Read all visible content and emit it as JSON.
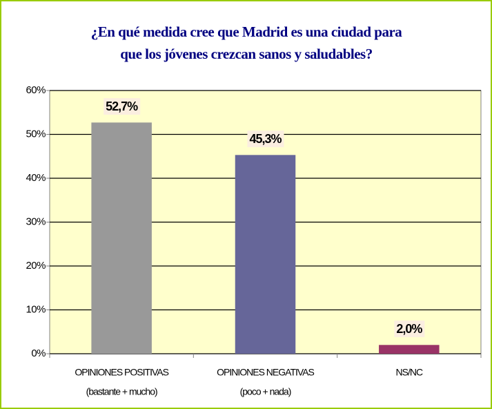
{
  "chart_data": {
    "type": "bar",
    "title": [
      "¿En qué medida cree que Madrid es una ciudad para",
      "que los jóvenes crezcan sanos y saludables?"
    ],
    "categories": [
      [
        "OPINIONES POSITIVAS",
        "(bastante + mucho)"
      ],
      [
        "OPINIONES NEGATIVAS",
        "(poco + nada)"
      ],
      [
        "NS/NC"
      ]
    ],
    "values": [
      52.7,
      45.3,
      2.0
    ],
    "value_labels": [
      "52,7%",
      "45,3%",
      "2,0%"
    ],
    "colors": [
      "#999999",
      "#666699",
      "#993366"
    ],
    "ylim": [
      0,
      60
    ],
    "yticks": [
      {
        "value": 0,
        "label": "0%"
      },
      {
        "value": 10,
        "label": "10%"
      },
      {
        "value": 20,
        "label": "20%"
      },
      {
        "value": 30,
        "label": "30%"
      },
      {
        "value": 40,
        "label": "40%"
      },
      {
        "value": 50,
        "label": "50%"
      },
      {
        "value": 60,
        "label": "60%"
      }
    ],
    "grid": true
  }
}
